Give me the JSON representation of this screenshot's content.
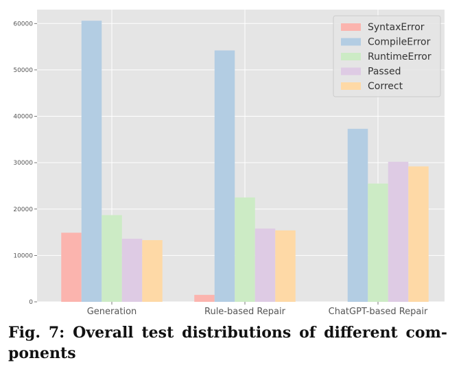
{
  "figure": {
    "caption": "Fig. 7: Overall test distributions of different com-ponents"
  },
  "chart_data": {
    "type": "bar",
    "categories": [
      "Generation",
      "Rule-based Repair",
      "ChatGPT-based Repair"
    ],
    "series": [
      {
        "name": "SyntaxError",
        "color": "#fbb4ae",
        "values": [
          14900,
          1500,
          0
        ]
      },
      {
        "name": "CompileError",
        "color": "#b3cde3",
        "values": [
          60600,
          54200,
          37300
        ]
      },
      {
        "name": "RuntimeError",
        "color": "#ccebc5",
        "values": [
          18700,
          22500,
          25500
        ]
      },
      {
        "name": "Passed",
        "color": "#decbe4",
        "values": [
          13600,
          15800,
          30200
        ]
      },
      {
        "name": "Correct",
        "color": "#fed9a6",
        "values": [
          13300,
          15400,
          29200
        ]
      }
    ],
    "yticks": [
      0,
      10000,
      20000,
      30000,
      40000,
      50000,
      60000
    ],
    "ylim": [
      0,
      63000
    ],
    "grid": true,
    "legend": "top-right",
    "background": "#e5e5e5"
  }
}
